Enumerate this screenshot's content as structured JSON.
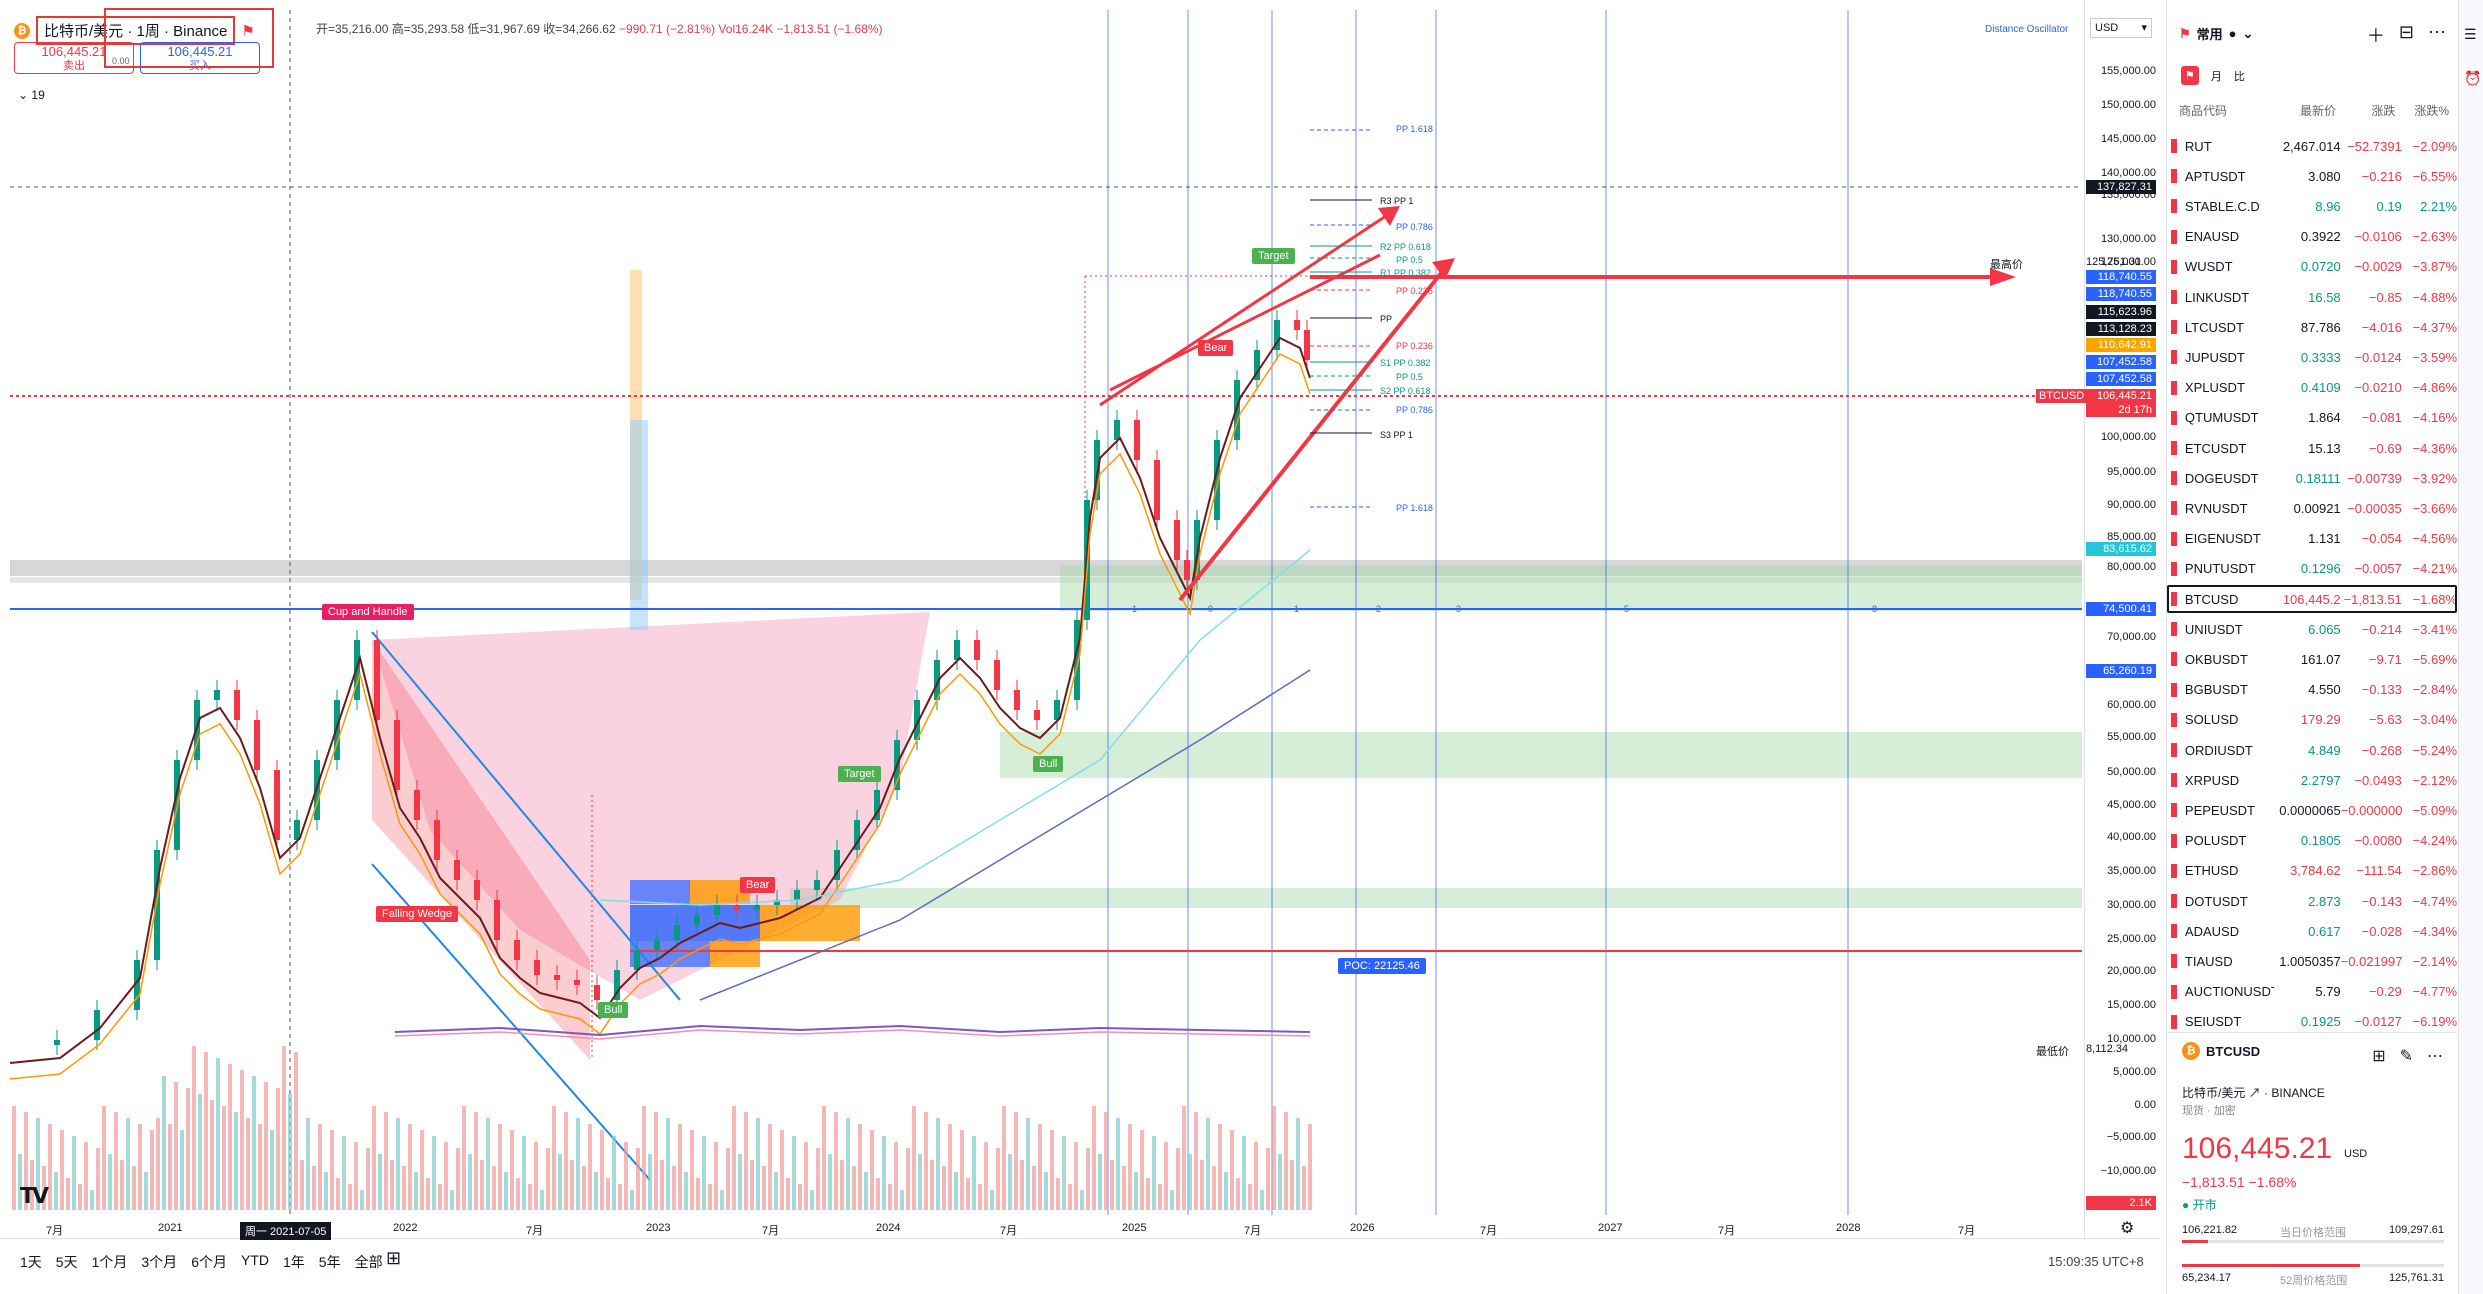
{
  "header": {
    "title": "比特币/美元 · 1周 · Binance",
    "ohlc_open": "开=35,216.00",
    "ohlc_high": "高=35,293.58",
    "ohlc_low": "低=31,967.69",
    "ohlc_close": "收=34,266.62",
    "ohlc_change": "−990.71 (−2.81%)",
    "ohlc_vol": "Vol16.24K −1,813.51 (−1.68%)",
    "sell_price": "106,445.21",
    "sell_label": "卖出",
    "buy_price": "106,445.21",
    "buy_label": "买入",
    "indicator_count": "19",
    "spread": "0.00"
  },
  "toolbar": {
    "indicator_name": "Distance Oscillator",
    "currency": "USD"
  },
  "price_axis": {
    "labels": [
      "155,000.00",
      "150,000.00",
      "145,000.00",
      "140,000.00",
      "135,000.00",
      "130,000.00",
      "125,000.00",
      "100,000.00",
      "95,000.00",
      "90,000.00",
      "85,000.00",
      "80,000.00",
      "70,000.00",
      "60,000.00",
      "55,000.00",
      "50,000.00",
      "45,000.00",
      "40,000.00",
      "35,000.00",
      "30,000.00",
      "25,000.00",
      "20,000.00",
      "15,000.00",
      "10,000.00",
      "5,000.00",
      "0.00",
      "−5,000.00",
      "−10,000.00",
      "−15,000.00"
    ],
    "tags": {
      "crosshair": "137,827.31",
      "high_label": "最高价",
      "high_value": "125,761.31",
      "t1": "118,740.55",
      "t2": "118,740.55",
      "t3": "115,623.96",
      "t4": "113,128.23",
      "t5": "110,642.91",
      "t6": "107,452.58",
      "t7": "107,452.58",
      "last_symbol": "BTCUSD",
      "last_price": "106,445.21",
      "countdown": "2d 17h",
      "m1": "83,615.62",
      "m2": "74,500.41",
      "m3": "65,260.19",
      "low_label": "最低价",
      "low_value": "8,112.34",
      "vol": "2.1K"
    }
  },
  "time_axis": {
    "labels": [
      "7月",
      "2021",
      "周一 2021-07-05",
      "2022",
      "7月",
      "2023",
      "7月",
      "2024",
      "7月",
      "2025",
      "7月",
      "2026",
      "7月",
      "2027",
      "7月",
      "2028",
      "7月"
    ]
  },
  "annotations": {
    "cup_handle": "Cup and Handle",
    "falling_wedge": "Falling Wedge",
    "bull1": "Bull",
    "bull2": "Bull",
    "bear1": "Bear",
    "bear2": "Bear",
    "target1": "Target",
    "target2": "Target",
    "poc": "POC: 22125.46",
    "pp": {
      "pp1618_top": "PP 1.618",
      "r3": "R3 PP 1",
      "pp0786_top": "PP 0.786",
      "r2": "R2 PP 0.618",
      "pp05a": "PP 0.5",
      "r1": "R1 PP 0.382",
      "pp0236a": "PP 0.236",
      "pp": "PP",
      "pp0236b": "PP 0.236",
      "s1": "S1 PP 0.382",
      "pp05b": "PP 0.5",
      "s2": "S2 PP 0.618",
      "pp0786b": "PP 0.786",
      "s3": "S3 PP 1",
      "pp1618_bot": "PP 1.618"
    },
    "fib_counts": [
      "1",
      "0",
      "1",
      "2",
      "3",
      "5",
      "8"
    ]
  },
  "period_bar": [
    "1天",
    "5天",
    "1个月",
    "3个月",
    "6个月",
    "YTD",
    "1年",
    "5年",
    "全部"
  ],
  "clock": "15:09:35 UTC+8",
  "watchlist": {
    "title": "常用",
    "filter1": "月",
    "filter2": "比",
    "columns": [
      "商品代码",
      "最新价",
      "涨跌",
      "涨跌%"
    ],
    "rows": [
      {
        "sym": "RUT",
        "last": "2,467.014",
        "chg": "−52.7391",
        "pct": "−2.09%",
        "lastColor": "#131722"
      },
      {
        "sym": "APTUSDT",
        "last": "3.080",
        "chg": "−0.216",
        "pct": "−6.55%",
        "lastColor": "#131722"
      },
      {
        "sym": "STABLE.C.D",
        "last": "8.96",
        "chg": "0.19",
        "pct": "2.21%",
        "lastColor": "#089981",
        "up": true
      },
      {
        "sym": "ENAUSD",
        "last": "0.3922",
        "chg": "−0.0106",
        "pct": "−2.63%",
        "lastColor": "#131722"
      },
      {
        "sym": "WUSDT",
        "last": "0.0720",
        "chg": "−0.0029",
        "pct": "−3.87%",
        "lastColor": "#089981"
      },
      {
        "sym": "LINKUSDT",
        "last": "16.58",
        "chg": "−0.85",
        "pct": "−4.88%",
        "lastColor": "#089981"
      },
      {
        "sym": "LTCUSDT",
        "last": "87.786",
        "chg": "−4.016",
        "pct": "−4.37%",
        "lastColor": "#131722"
      },
      {
        "sym": "JUPUSDT",
        "last": "0.3333",
        "chg": "−0.0124",
        "pct": "−3.59%",
        "lastColor": "#089981"
      },
      {
        "sym": "XPLUSDT",
        "last": "0.4109",
        "chg": "−0.0210",
        "pct": "−4.86%",
        "lastColor": "#089981"
      },
      {
        "sym": "QTUMUSDT",
        "last": "1.864",
        "chg": "−0.081",
        "pct": "−4.16%",
        "lastColor": "#131722"
      },
      {
        "sym": "ETCUSDT",
        "last": "15.13",
        "chg": "−0.69",
        "pct": "−4.36%",
        "lastColor": "#131722"
      },
      {
        "sym": "DOGEUSDT",
        "last": "0.18111",
        "chg": "−0.00739",
        "pct": "−3.92%",
        "lastColor": "#089981"
      },
      {
        "sym": "RVNUSDT",
        "last": "0.00921",
        "chg": "−0.00035",
        "pct": "−3.66%",
        "lastColor": "#131722"
      },
      {
        "sym": "EIGENUSDT",
        "last": "1.131",
        "chg": "−0.054",
        "pct": "−4.56%",
        "lastColor": "#131722"
      },
      {
        "sym": "PNUTUSDT",
        "last": "0.1296",
        "chg": "−0.0057",
        "pct": "−4.21%",
        "lastColor": "#089981"
      },
      {
        "sym": "BTCUSD",
        "last": "106,445.2",
        "chg": "−1,813.51",
        "pct": "−1.68%",
        "lastColor": "#f23645",
        "selected": true
      },
      {
        "sym": "UNIUSDT",
        "last": "6.065",
        "chg": "−0.214",
        "pct": "−3.41%",
        "lastColor": "#089981"
      },
      {
        "sym": "OKBUSDT",
        "last": "161.07",
        "chg": "−9.71",
        "pct": "−5.69%",
        "lastColor": "#131722"
      },
      {
        "sym": "BGBUSDT",
        "last": "4.550",
        "chg": "−0.133",
        "pct": "−2.84%",
        "lastColor": "#131722"
      },
      {
        "sym": "SOLUSD",
        "last": "179.29",
        "chg": "−5.63",
        "pct": "−3.04%",
        "lastColor": "#f23645"
      },
      {
        "sym": "ORDIUSDT",
        "last": "4.849",
        "chg": "−0.268",
        "pct": "−5.24%",
        "lastColor": "#089981"
      },
      {
        "sym": "XRPUSD",
        "last": "2.2797",
        "chg": "−0.0493",
        "pct": "−2.12%",
        "lastColor": "#089981"
      },
      {
        "sym": "PEPEUSDT",
        "last": "0.0000065",
        "chg": "−0.000000",
        "pct": "−5.09%",
        "lastColor": "#131722"
      },
      {
        "sym": "POLUSDT",
        "last": "0.1805",
        "chg": "−0.0080",
        "pct": "−4.24%",
        "lastColor": "#089981"
      },
      {
        "sym": "ETHUSD",
        "last": "3,784.62",
        "chg": "−111.54",
        "pct": "−2.86%",
        "lastColor": "#f23645"
      },
      {
        "sym": "DOTUSDT",
        "last": "2.873",
        "chg": "−0.143",
        "pct": "−4.74%",
        "lastColor": "#089981"
      },
      {
        "sym": "ADAUSD",
        "last": "0.617",
        "chg": "−0.028",
        "pct": "−4.34%",
        "lastColor": "#089981"
      },
      {
        "sym": "TIAUSD",
        "last": "1.0050357",
        "chg": "−0.021997",
        "pct": "−2.14%",
        "lastColor": "#131722"
      },
      {
        "sym": "AUCTIONUSDT",
        "last": "5.79",
        "chg": "−0.29",
        "pct": "−4.77%",
        "lastColor": "#131722"
      },
      {
        "sym": "SEIUSDT",
        "last": "0.1925",
        "chg": "−0.0127",
        "pct": "−6.19%",
        "lastColor": "#089981"
      }
    ]
  },
  "detail": {
    "symbol": "BTCUSD",
    "name": "比特币/美元",
    "exchange": "BINANCE",
    "sub": "现货 · 加密",
    "price": "106,445.21",
    "currency": "USD",
    "change": "−1,813.51  −1.68%",
    "market": "开市",
    "day_low": "106,221.82",
    "day_label": "当日价格范围",
    "day_high": "109,297.61",
    "wk_low": "65,234.17",
    "wk_label": "52周价格范围",
    "wk_high": "125,761.31"
  },
  "colors": {
    "up": "#089981",
    "down": "#f23645",
    "accent": "#2962ff"
  }
}
